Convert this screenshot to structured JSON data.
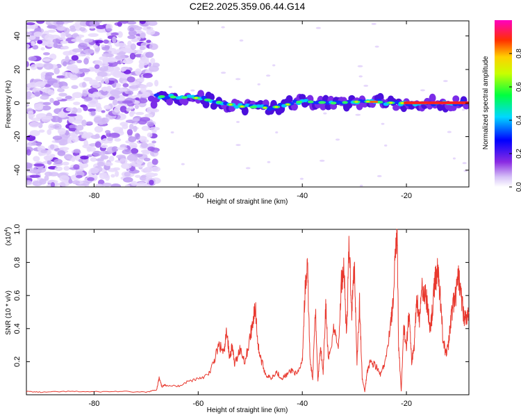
{
  "title": "C2E2.2025.359.06.44.G14",
  "colors": {
    "snr_line": "#e8382e",
    "axis": "#000000",
    "spec_low": "#c9a6f5",
    "spec_mid": "#7b2ce8"
  },
  "chart_data": [
    {
      "type": "heatmap",
      "name": "spectrogram",
      "xlabel": "Height of straight line (km)",
      "ylabel": "Frequency (Hz)",
      "xlim": [
        -93,
        -8
      ],
      "ylim": [
        -50,
        49
      ],
      "x_ticks": [
        -80,
        -60,
        -40,
        -20
      ],
      "y_ticks": [
        -40,
        -20,
        0,
        20,
        40
      ],
      "signal_track": [
        [
          -68,
          4
        ],
        [
          -60,
          3
        ],
        [
          -52,
          -2
        ],
        [
          -46,
          -3
        ],
        [
          -40,
          1
        ],
        [
          -34,
          0
        ],
        [
          -28,
          1
        ],
        [
          -22,
          0
        ],
        [
          -16,
          0
        ],
        [
          -8,
          0
        ]
      ],
      "colorbar": {
        "label": "Normalized spectral amplitude",
        "range": [
          0,
          1
        ],
        "ticks": [
          0.0,
          0.2,
          0.4,
          0.6,
          0.8
        ],
        "tick_labels": [
          "0.0",
          "0.2",
          "0.4",
          "0.6",
          "0.8"
        ]
      }
    },
    {
      "type": "line",
      "name": "snr",
      "xlabel": "Height of straight line (km)",
      "ylabel": "SNR (10 * v/v)",
      "scale_label": "(x10",
      "scale_exp": "4",
      "xlim": [
        -93,
        -8
      ],
      "ylim": [
        0,
        1.0
      ],
      "x_ticks": [
        -80,
        -60,
        -40,
        -20
      ],
      "y_ticks": [
        0.2,
        0.4,
        0.6,
        0.8,
        1.0
      ],
      "y_tick_labels": [
        "0.2",
        "0.4",
        "0.6",
        "0.8",
        "1.0"
      ],
      "series": [
        {
          "name": "SNR",
          "x": [
            -93,
            -90,
            -85,
            -80,
            -75,
            -70,
            -68,
            -67.5,
            -67,
            -66,
            -64,
            -62,
            -60,
            -58,
            -57,
            -56,
            -55,
            -54.5,
            -54,
            -53.5,
            -53,
            -52,
            -51,
            -50,
            -49.5,
            -49,
            -48.5,
            -48,
            -47,
            -46,
            -45,
            -44,
            -43,
            -42,
            -41,
            -40,
            -39.5,
            -39,
            -38.5,
            -38,
            -37.5,
            -37,
            -36.5,
            -36,
            -35.5,
            -35,
            -34,
            -33,
            -32.5,
            -32,
            -31.5,
            -31,
            -30.5,
            -30,
            -29.5,
            -29,
            -28.5,
            -28,
            -27.5,
            -27,
            -26,
            -25,
            -24,
            -23,
            -22.5,
            -22,
            -21.8,
            -21.5,
            -21,
            -20.5,
            -20,
            -19.5,
            -19,
            -18.5,
            -18,
            -17.5,
            -17,
            -16.5,
            -16,
            -15.5,
            -15,
            -14.5,
            -14,
            -13.5,
            -13,
            -12.5,
            -12,
            -11.5,
            -11,
            -10.5,
            -10,
            -9.5,
            -9,
            -8.5,
            -8
          ],
          "y": [
            0.02,
            0.015,
            0.02,
            0.018,
            0.02,
            0.015,
            0.03,
            0.1,
            0.05,
            0.06,
            0.05,
            0.08,
            0.1,
            0.12,
            0.2,
            0.3,
            0.25,
            0.4,
            0.22,
            0.3,
            0.18,
            0.28,
            0.2,
            0.35,
            0.45,
            0.52,
            0.3,
            0.22,
            0.12,
            0.1,
            0.14,
            0.1,
            0.12,
            0.15,
            0.12,
            0.2,
            0.62,
            0.76,
            0.2,
            0.1,
            0.55,
            0.08,
            0.3,
            0.12,
            0.55,
            0.2,
            0.4,
            0.3,
            0.68,
            0.78,
            0.35,
            0.92,
            0.5,
            0.8,
            0.2,
            0.55,
            0.1,
            0.02,
            0.15,
            0.2,
            0.18,
            0.12,
            0.2,
            0.45,
            0.55,
            0.95,
            1.0,
            0.3,
            0.02,
            0.4,
            0.3,
            0.5,
            0.2,
            0.3,
            0.6,
            0.45,
            0.65,
            0.62,
            0.55,
            0.4,
            0.5,
            0.7,
            0.75,
            0.6,
            0.35,
            0.25,
            0.28,
            0.45,
            0.55,
            0.6,
            0.72,
            0.6,
            0.48,
            0.45,
            0.5
          ]
        }
      ]
    }
  ]
}
